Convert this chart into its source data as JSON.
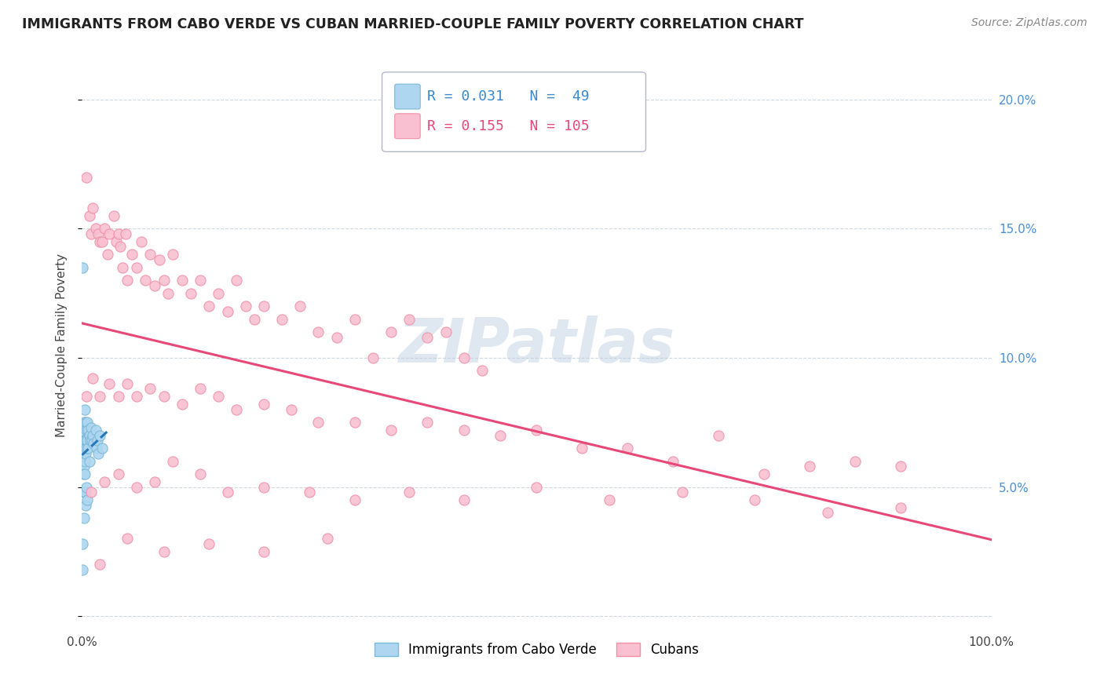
{
  "title": "IMMIGRANTS FROM CABO VERDE VS CUBAN MARRIED-COUPLE FAMILY POVERTY CORRELATION CHART",
  "source": "Source: ZipAtlas.com",
  "ylabel": "Married-Couple Family Poverty",
  "xlim": [
    0.0,
    1.0
  ],
  "ylim": [
    -0.005,
    0.215
  ],
  "yticks": [
    0.0,
    0.05,
    0.1,
    0.15,
    0.2
  ],
  "ytick_labels": [
    "",
    "5.0%",
    "10.0%",
    "15.0%",
    "20.0%"
  ],
  "xtick_labels": [
    "0.0%",
    "100.0%"
  ],
  "watermark": "ZIPatlas",
  "legend_r1": "R = 0.031",
  "legend_n1": "N =  49",
  "legend_r2": "R = 0.155",
  "legend_n2": "N = 105",
  "series1_label": "Immigrants from Cabo Verde",
  "series2_label": "Cubans",
  "color1_face": "#aed6f0",
  "color1_edge": "#7ab8d8",
  "color2_face": "#f8c0d0",
  "color2_edge": "#f090a8",
  "trendline1_color": "#2878b8",
  "trendline2_color": "#e84878",
  "grid_color": "#d0d8e0",
  "right_tick_color": "#4a90d9",
  "cabo_verde_x": [
    0.001,
    0.001,
    0.001,
    0.001,
    0.001,
    0.002,
    0.002,
    0.002,
    0.002,
    0.002,
    0.002,
    0.002,
    0.002,
    0.003,
    0.003,
    0.003,
    0.003,
    0.003,
    0.003,
    0.004,
    0.004,
    0.004,
    0.005,
    0.005,
    0.006,
    0.006,
    0.007,
    0.007,
    0.008,
    0.009,
    0.01,
    0.011,
    0.012,
    0.013,
    0.015,
    0.016,
    0.017,
    0.018,
    0.02,
    0.022,
    0.001,
    0.001,
    0.002,
    0.002,
    0.003,
    0.004,
    0.005,
    0.006,
    0.008
  ],
  "cabo_verde_y": [
    0.135,
    0.072,
    0.068,
    0.065,
    0.062,
    0.075,
    0.073,
    0.07,
    0.068,
    0.065,
    0.063,
    0.058,
    0.055,
    0.08,
    0.073,
    0.068,
    0.065,
    0.06,
    0.055,
    0.075,
    0.068,
    0.063,
    0.072,
    0.065,
    0.075,
    0.068,
    0.072,
    0.065,
    0.07,
    0.068,
    0.073,
    0.068,
    0.07,
    0.067,
    0.072,
    0.065,
    0.068,
    0.063,
    0.07,
    0.065,
    0.028,
    0.018,
    0.048,
    0.038,
    0.048,
    0.043,
    0.05,
    0.045,
    0.06
  ],
  "cubans_x": [
    0.005,
    0.008,
    0.01,
    0.012,
    0.015,
    0.018,
    0.02,
    0.022,
    0.025,
    0.028,
    0.03,
    0.035,
    0.038,
    0.04,
    0.042,
    0.045,
    0.048,
    0.05,
    0.055,
    0.06,
    0.065,
    0.07,
    0.075,
    0.08,
    0.085,
    0.09,
    0.095,
    0.1,
    0.11,
    0.12,
    0.13,
    0.14,
    0.15,
    0.16,
    0.17,
    0.18,
    0.19,
    0.2,
    0.22,
    0.24,
    0.26,
    0.28,
    0.3,
    0.32,
    0.34,
    0.36,
    0.38,
    0.4,
    0.42,
    0.44,
    0.005,
    0.012,
    0.02,
    0.03,
    0.04,
    0.05,
    0.06,
    0.075,
    0.09,
    0.11,
    0.13,
    0.15,
    0.17,
    0.2,
    0.23,
    0.26,
    0.3,
    0.34,
    0.38,
    0.42,
    0.46,
    0.5,
    0.55,
    0.6,
    0.65,
    0.7,
    0.75,
    0.8,
    0.85,
    0.9,
    0.01,
    0.025,
    0.04,
    0.06,
    0.08,
    0.1,
    0.13,
    0.16,
    0.2,
    0.25,
    0.3,
    0.36,
    0.42,
    0.5,
    0.58,
    0.66,
    0.74,
    0.82,
    0.9,
    0.02,
    0.05,
    0.09,
    0.14,
    0.2,
    0.27
  ],
  "cubans_y": [
    0.17,
    0.155,
    0.148,
    0.158,
    0.15,
    0.148,
    0.145,
    0.145,
    0.15,
    0.14,
    0.148,
    0.155,
    0.145,
    0.148,
    0.143,
    0.135,
    0.148,
    0.13,
    0.14,
    0.135,
    0.145,
    0.13,
    0.14,
    0.128,
    0.138,
    0.13,
    0.125,
    0.14,
    0.13,
    0.125,
    0.13,
    0.12,
    0.125,
    0.118,
    0.13,
    0.12,
    0.115,
    0.12,
    0.115,
    0.12,
    0.11,
    0.108,
    0.115,
    0.1,
    0.11,
    0.115,
    0.108,
    0.11,
    0.1,
    0.095,
    0.085,
    0.092,
    0.085,
    0.09,
    0.085,
    0.09,
    0.085,
    0.088,
    0.085,
    0.082,
    0.088,
    0.085,
    0.08,
    0.082,
    0.08,
    0.075,
    0.075,
    0.072,
    0.075,
    0.072,
    0.07,
    0.072,
    0.065,
    0.065,
    0.06,
    0.07,
    0.055,
    0.058,
    0.06,
    0.058,
    0.048,
    0.052,
    0.055,
    0.05,
    0.052,
    0.06,
    0.055,
    0.048,
    0.05,
    0.048,
    0.045,
    0.048,
    0.045,
    0.05,
    0.045,
    0.048,
    0.045,
    0.04,
    0.042,
    0.02,
    0.03,
    0.025,
    0.028,
    0.025,
    0.03
  ]
}
